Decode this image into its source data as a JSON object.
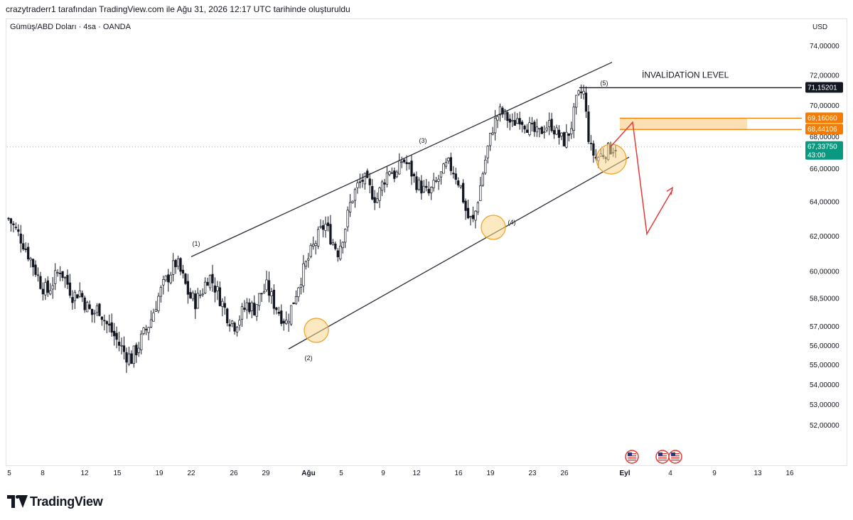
{
  "header": {
    "text": "crazytraderr1 tarafından TradingView.com ile Ağu 31, 2026 12:17 UTC tarihinde oluşturuldu"
  },
  "symbol": {
    "label": "Gümüş/ABD Doları · 4sa · OANDA",
    "currency": "USD"
  },
  "footer": {
    "logo_text": "TradingView",
    "logo_icon": "tradingview-logo-icon"
  },
  "colors": {
    "candle": "#131722",
    "channel_line": "#2a2e39",
    "circle_fill": "#f9d78e",
    "circle_stroke": "#f0a020",
    "zone_fill": "#fcd9a4",
    "zone_label_bg": "#f57c00",
    "current_price_bg": "#089981",
    "invalidation_label_bg": "#131722",
    "projection_arrow": "#e53935",
    "axis_text": "#131722"
  },
  "chart_data": {
    "type": "candlestick",
    "title": "Gümüş/ABD Doları · 4sa · OANDA",
    "timeframe": "4sa",
    "price_axis": {
      "scale": "log",
      "ticks": [
        {
          "value": 74.0,
          "label": "74,00000"
        },
        {
          "value": 72.0,
          "label": "72,00000"
        },
        {
          "value": 70.0,
          "label": "70,00000"
        },
        {
          "value": 68.0,
          "label": "68,00000"
        },
        {
          "value": 66.0,
          "label": "66,00000"
        },
        {
          "value": 64.0,
          "label": "64,00000"
        },
        {
          "value": 62.0,
          "label": "62,00000"
        },
        {
          "value": 60.0,
          "label": "60,00000"
        },
        {
          "value": 58.5,
          "label": "58,50000"
        },
        {
          "value": 57.0,
          "label": "57,00000"
        },
        {
          "value": 56.0,
          "label": "56,00000"
        },
        {
          "value": 55.0,
          "label": "55,00000"
        },
        {
          "value": 54.0,
          "label": "54,00000"
        },
        {
          "value": 53.0,
          "label": "53,00000"
        },
        {
          "value": 52.0,
          "label": "52,00000"
        }
      ]
    },
    "time_axis": {
      "ticks": [
        {
          "label": "5",
          "bold": false
        },
        {
          "label": "8",
          "bold": false
        },
        {
          "label": "12",
          "bold": false
        },
        {
          "label": "15",
          "bold": false
        },
        {
          "label": "19",
          "bold": false
        },
        {
          "label": "22",
          "bold": false
        },
        {
          "label": "26",
          "bold": false
        },
        {
          "label": "29",
          "bold": false
        },
        {
          "label": "Ağu",
          "bold": true
        },
        {
          "label": "5",
          "bold": false
        },
        {
          "label": "9",
          "bold": false
        },
        {
          "label": "12",
          "bold": false
        },
        {
          "label": "16",
          "bold": false
        },
        {
          "label": "19",
          "bold": false
        },
        {
          "label": "23",
          "bold": false
        },
        {
          "label": "26",
          "bold": false
        },
        {
          "label": "Eyl",
          "bold": true
        },
        {
          "label": "4",
          "bold": false
        },
        {
          "label": "9",
          "bold": false
        },
        {
          "label": "13",
          "bold": false
        },
        {
          "label": "16",
          "bold": false
        }
      ]
    },
    "price_labels": {
      "invalidation": "71,15201",
      "zone_top": "69,16060",
      "zone_bottom": "68,44106",
      "current_price": "67,33750",
      "countdown": "43:00"
    },
    "levels": {
      "invalidation": 71.15,
      "zone_top": 69.16,
      "zone_bottom": 68.44,
      "current": 67.34
    },
    "annotations": {
      "invalidation_text": "İNVALİDATİON LEVEL",
      "wave_labels": [
        "(1)",
        "(2)",
        "(3)",
        "(4)",
        "(5)"
      ]
    },
    "wave_points": [
      {
        "label": "(1)",
        "price": 60.8
      },
      {
        "label": "(2)",
        "price": 56.6
      },
      {
        "label": "(3)",
        "price": 66.9
      },
      {
        "label": "(4)",
        "price": 62.5
      },
      {
        "label": "(5)",
        "price": 71.0
      }
    ],
    "close_path": [
      63.0,
      62.4,
      61.8,
      61.0,
      60.2,
      59.3,
      58.8,
      59.5,
      60.1,
      59.4,
      58.6,
      58.9,
      58.1,
      57.6,
      58.0,
      57.2,
      56.7,
      56.1,
      55.6,
      55.3,
      55.9,
      56.6,
      57.3,
      58.4,
      59.2,
      59.9,
      60.5,
      59.6,
      58.6,
      58.3,
      58.9,
      59.8,
      59.1,
      58.3,
      57.5,
      57.1,
      57.6,
      58.2,
      57.9,
      58.7,
      59.1,
      58.3,
      57.7,
      57.2,
      58.2,
      59.4,
      60.3,
      61.2,
      62.0,
      62.7,
      61.8,
      61.1,
      62.3,
      64.0,
      64.9,
      65.4,
      64.7,
      64.1,
      65.2,
      66.0,
      65.5,
      66.6,
      66.1,
      65.2,
      64.8,
      64.4,
      65.0,
      65.6,
      66.3,
      65.8,
      64.9,
      63.1,
      62.8,
      64.8,
      66.9,
      68.6,
      69.6,
      69.3,
      68.7,
      69.3,
      68.8,
      68.4,
      68.1,
      68.6,
      68.8,
      68.1,
      67.7,
      68.4,
      70.4,
      71.0,
      67.3,
      66.6,
      66.9,
      67.2,
      67.34
    ],
    "projection_path": [
      67.3,
      68.9,
      62.1,
      64.7
    ],
    "event_icons": [
      "us-flag-icon",
      "us-flag-icon",
      "us-flag-icon"
    ]
  }
}
